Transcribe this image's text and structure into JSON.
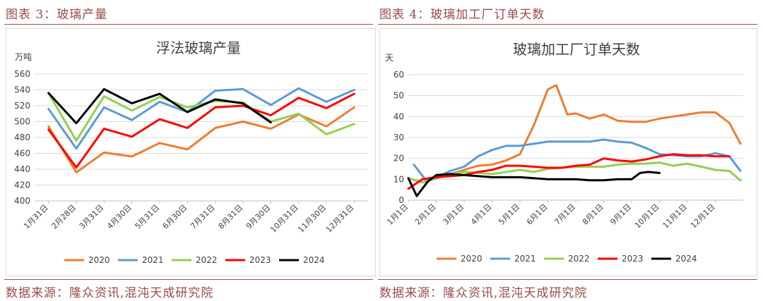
{
  "left": {
    "caption": "图表 3：玻璃产量",
    "source": "数据来源：隆众资讯,混沌天成研究院"
  },
  "right": {
    "caption": "图表 4：玻璃加工厂订单天数",
    "source": "数据来源：隆众资讯,混沌天成研究院"
  },
  "chart_data": [
    {
      "type": "line",
      "title": "浮法玻璃产量",
      "ylabel": "万吨",
      "xlabel": "",
      "ylim": [
        400,
        560
      ],
      "yticks": [
        400,
        420,
        440,
        460,
        480,
        500,
        520,
        540,
        560
      ],
      "categories": [
        "1月31日",
        "2月28日",
        "3月31日",
        "4月30日",
        "5月31日",
        "6月30日",
        "7月31日",
        "8月31日",
        "9月30日",
        "10月31日",
        "11月30日",
        "12月31日"
      ],
      "grid": true,
      "legend_position": "bottom",
      "series": [
        {
          "name": "2020",
          "color": "#ed7d31",
          "values": [
            494,
            436,
            461,
            456,
            473,
            465,
            492,
            500,
            491,
            509,
            494,
            518
          ]
        },
        {
          "name": "2021",
          "color": "#5b9bd5",
          "values": [
            516,
            466,
            518,
            502,
            525,
            512,
            539,
            541,
            521,
            542,
            525,
            540
          ]
        },
        {
          "name": "2022",
          "color": "#92d050",
          "values": [
            536,
            476,
            532,
            514,
            531,
            518,
            526,
            524,
            500,
            510,
            484,
            497
          ]
        },
        {
          "name": "2023",
          "color": "#ff0000",
          "values": [
            490,
            442,
            491,
            481,
            503,
            492,
            518,
            520,
            508,
            530,
            517,
            535
          ]
        },
        {
          "name": "2024",
          "color": "#000000",
          "values": [
            536,
            498,
            541,
            523,
            535,
            512,
            528,
            523,
            499,
            null,
            null,
            null
          ]
        }
      ]
    },
    {
      "type": "line",
      "title": "玻璃加工厂订单天数",
      "ylabel": "天",
      "xlabel": "",
      "ylim": [
        0,
        60
      ],
      "yticks": [
        0,
        10,
        20,
        30,
        40,
        50,
        60
      ],
      "x_domain": [
        1,
        13
      ],
      "categories": [
        "1月1日",
        "2月1日",
        "3月1日",
        "4月1日",
        "5月1日",
        "6月1日",
        "7月1日",
        "8月1日",
        "9月1日",
        "10月1日",
        "11月1日",
        "12月1日"
      ],
      "grid": true,
      "legend_position": "bottom",
      "series": [
        {
          "name": "2020",
          "color": "#ed7d31",
          "x": [
            1.0,
            1.5,
            2.0,
            2.5,
            3.0,
            3.5,
            4.0,
            4.5,
            5.0,
            5.5,
            6.0,
            6.3,
            6.7,
            7.0,
            7.5,
            8.0,
            8.5,
            9.0,
            9.5,
            10.0,
            10.5,
            11.0,
            11.5,
            12.0,
            12.5,
            12.9
          ],
          "values": [
            10.5,
            8.5,
            10.5,
            12.5,
            14.5,
            16.5,
            17.0,
            19.0,
            22.0,
            36.0,
            53.0,
            55.0,
            41.0,
            41.5,
            39.0,
            41.0,
            38.0,
            37.5,
            37.5,
            39.0,
            40.0,
            41.0,
            42.0,
            42.0,
            37.0,
            27.0
          ]
        },
        {
          "name": "2021",
          "color": "#5b9bd5",
          "x": [
            1.2,
            1.6,
            2.0,
            2.5,
            3.0,
            3.5,
            4.0,
            4.5,
            5.0,
            5.5,
            6.0,
            6.5,
            7.0,
            7.5,
            8.0,
            8.5,
            9.0,
            9.5,
            10.0,
            10.5,
            11.0,
            11.5,
            12.0,
            12.5,
            12.9
          ],
          "values": [
            17.0,
            10.0,
            11.0,
            14.0,
            16.0,
            21.0,
            24.0,
            26.0,
            26.0,
            27.0,
            28.0,
            28.0,
            28.0,
            28.0,
            29.0,
            28.0,
            27.5,
            25.0,
            22.0,
            21.5,
            21.0,
            21.0,
            22.5,
            21.0,
            14.0
          ]
        },
        {
          "name": "2022",
          "color": "#92d050",
          "x": [
            1.0,
            1.5,
            2.0,
            2.5,
            3.0,
            3.5,
            4.0,
            4.5,
            5.0,
            5.5,
            6.0,
            6.5,
            7.0,
            7.5,
            8.0,
            8.5,
            9.0,
            9.5,
            10.0,
            10.5,
            11.0,
            11.5,
            12.0,
            12.5,
            12.9
          ],
          "values": [
            10.5,
            8.5,
            11.0,
            12.5,
            13.5,
            13.0,
            12.5,
            13.5,
            14.5,
            13.5,
            15.0,
            15.5,
            16.0,
            16.0,
            16.0,
            17.0,
            17.5,
            17.5,
            18.0,
            16.5,
            17.5,
            16.0,
            14.5,
            14.0,
            9.5
          ]
        },
        {
          "name": "2023",
          "color": "#ff0000",
          "x": [
            1.0,
            1.5,
            2.0,
            2.5,
            3.0,
            3.5,
            4.0,
            4.5,
            5.0,
            5.5,
            6.0,
            6.5,
            7.0,
            7.5,
            8.0,
            8.5,
            9.0,
            9.5,
            10.0,
            10.5,
            11.0,
            11.5,
            12.0,
            12.5
          ],
          "values": [
            5.5,
            10.0,
            11.0,
            11.5,
            12.0,
            13.5,
            14.5,
            16.5,
            16.5,
            16.0,
            15.5,
            15.5,
            16.5,
            17.0,
            20.0,
            19.0,
            18.5,
            19.5,
            21.0,
            22.0,
            21.5,
            21.5,
            21.0,
            21.0
          ]
        },
        {
          "name": "2024",
          "color": "#000000",
          "x": [
            1.0,
            1.3,
            1.7,
            2.0,
            2.5,
            3.0,
            3.5,
            4.0,
            4.5,
            5.0,
            5.5,
            6.0,
            6.5,
            7.0,
            7.5,
            8.0,
            8.5,
            9.0,
            9.3,
            9.6,
            10.0
          ],
          "values": [
            10.5,
            2.0,
            9.0,
            12.0,
            12.5,
            12.0,
            11.5,
            11.0,
            11.0,
            11.0,
            10.5,
            10.0,
            10.0,
            10.0,
            9.5,
            9.5,
            10.0,
            10.0,
            13.0,
            13.5,
            13.0
          ]
        }
      ]
    }
  ]
}
